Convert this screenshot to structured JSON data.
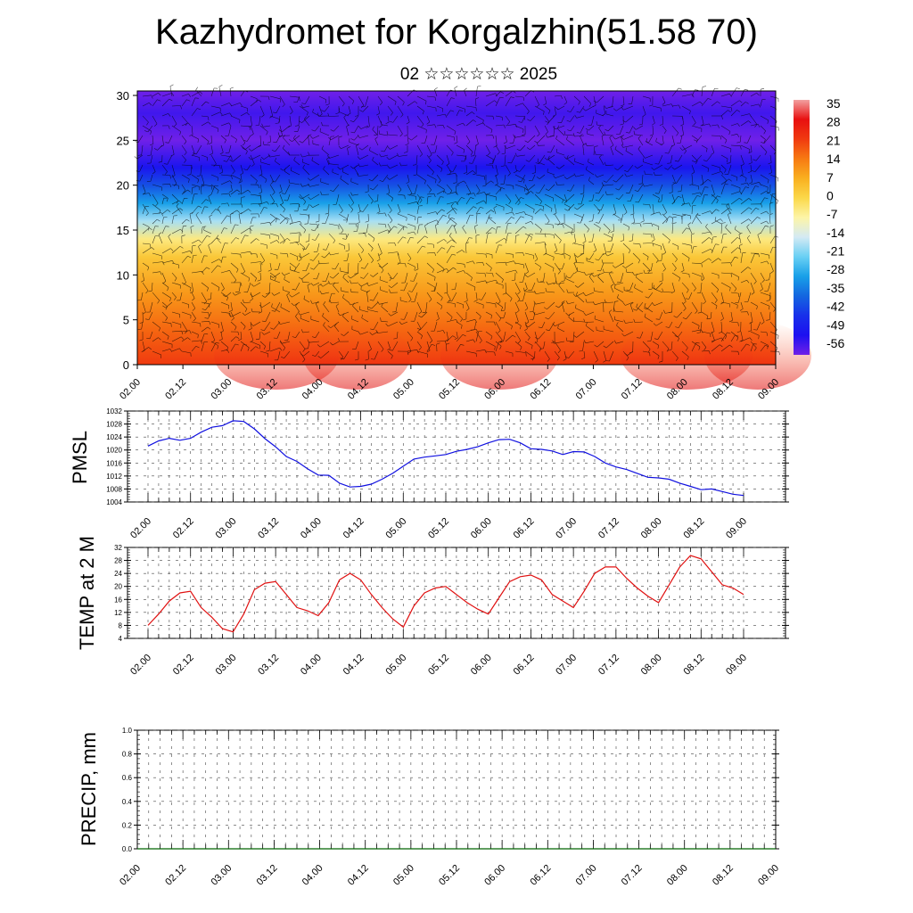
{
  "title": "Kazhydromet for Korgalzhin(51.58 70)",
  "subtitle": "02 ☆☆☆☆☆☆ 2025",
  "time_labels": [
    "02.00",
    "02.12",
    "03.00",
    "03.12",
    "04.00",
    "04.12",
    "05.00",
    "05.12",
    "06.00",
    "06.12",
    "07.00",
    "07.12",
    "08.00",
    "08.12",
    "09.00"
  ],
  "colors": {
    "pmsl_line": "#1010e0",
    "temp_line": "#e01010",
    "precip_line": "#006400"
  },
  "chart_data": [
    {
      "type": "heatmap",
      "name": "height-time temperature cross section with wind barbs",
      "x": [
        "02.00",
        "02.12",
        "03.00",
        "03.12",
        "04.00",
        "04.12",
        "05.00",
        "05.12",
        "06.00",
        "06.12",
        "07.00",
        "07.12",
        "08.00",
        "08.12",
        "09.00"
      ],
      "ylim": [
        0,
        30.5
      ],
      "yticks": [
        0,
        5,
        10,
        15,
        20,
        25,
        30
      ],
      "colorbar_labels": [
        "35",
        "28",
        "21",
        "14",
        "7",
        "0",
        "-7",
        "-14",
        "-21",
        "-28",
        "-35",
        "-42",
        "-49",
        "-56"
      ],
      "colorscale": [
        {
          "value": 35,
          "color": "#f2a0a0"
        },
        {
          "value": 28,
          "color": "#e81010"
        },
        {
          "value": 21,
          "color": "#f03a10"
        },
        {
          "value": 14,
          "color": "#f77a12"
        },
        {
          "value": 7,
          "color": "#f9b020"
        },
        {
          "value": 0,
          "color": "#fbd84a"
        },
        {
          "value": -7,
          "color": "#fdf5a8"
        },
        {
          "value": -14,
          "color": "#d4eaf4"
        },
        {
          "value": -21,
          "color": "#6ad0f4"
        },
        {
          "value": -28,
          "color": "#18a0e8"
        },
        {
          "value": -35,
          "color": "#1466e0"
        },
        {
          "value": -42,
          "color": "#1830ea"
        },
        {
          "value": -49,
          "color": "#1c10f0"
        },
        {
          "value": -56,
          "color": "#7020e8"
        }
      ],
      "profile": [
        {
          "height": 0,
          "temperature": 21
        },
        {
          "height": 4,
          "temperature": 16
        },
        {
          "height": 8,
          "temperature": 10
        },
        {
          "height": 12,
          "temperature": 3
        },
        {
          "height": 14,
          "temperature": -4
        },
        {
          "height": 16,
          "temperature": -17
        },
        {
          "height": 18,
          "temperature": -28
        },
        {
          "height": 20,
          "temperature": -38
        },
        {
          "height": 22,
          "temperature": -48
        },
        {
          "height": 25,
          "temperature": -56
        },
        {
          "height": 28,
          "temperature": -52
        },
        {
          "height": 30.5,
          "temperature": -56
        }
      ],
      "grid": false
    },
    {
      "type": "line",
      "ylabel": "PMSL",
      "ylim": [
        1004,
        1032
      ],
      "yticks": [
        1004,
        1008,
        1012,
        1016,
        1020,
        1024,
        1028,
        1032
      ],
      "x_labels": [
        "02.00",
        "02.12",
        "03.00",
        "03.12",
        "04.00",
        "04.12",
        "05.00",
        "05.12",
        "06.00",
        "06.12",
        "07.00",
        "07.12",
        "08.00",
        "08.12",
        "09.00"
      ],
      "values": [
        1021.2,
        1022.8,
        1023.6,
        1023.0,
        1023.6,
        1025.5,
        1027.0,
        1027.5,
        1029.0,
        1028.8,
        1026.5,
        1023.5,
        1021.0,
        1018.0,
        1016.5,
        1014.2,
        1012.3,
        1012.2,
        1009.8,
        1008.6,
        1008.8,
        1009.5,
        1011.0,
        1012.8,
        1015.0,
        1017.2,
        1017.8,
        1018.2,
        1018.6,
        1019.6,
        1020.2,
        1021.0,
        1022.2,
        1023.2,
        1023.3,
        1022.2,
        1020.4,
        1020.2,
        1019.7,
        1018.6,
        1019.5,
        1019.4,
        1018.0,
        1016.0,
        1014.8,
        1014.0,
        1012.8,
        1011.6,
        1011.4,
        1011.0,
        1009.8,
        1008.8,
        1007.8,
        1008.0,
        1007.2,
        1006.4,
        1006.0
      ],
      "grid": true
    },
    {
      "type": "line",
      "ylabel": "TEMP at 2 M",
      "ylim": [
        4,
        32
      ],
      "yticks": [
        4,
        8,
        12,
        16,
        20,
        24,
        28,
        32
      ],
      "x_labels": [
        "02.00",
        "02.12",
        "03.00",
        "03.12",
        "04.00",
        "04.12",
        "05.00",
        "05.12",
        "06.00",
        "06.12",
        "07.00",
        "07.12",
        "08.00",
        "08.12",
        "09.00"
      ],
      "values": [
        8,
        11.5,
        15.5,
        18,
        18.5,
        13.5,
        10.5,
        7,
        6,
        11.5,
        19,
        21,
        21.5,
        17.5,
        13.5,
        12.5,
        11,
        15,
        22,
        24,
        22,
        17.5,
        13.5,
        10,
        7.5,
        14,
        18,
        19.5,
        20,
        17.5,
        15,
        13,
        11.5,
        16.5,
        21.5,
        23,
        23.5,
        22,
        17.5,
        15.5,
        13.5,
        18.5,
        24,
        26,
        26,
        22.5,
        19.5,
        17,
        15,
        20.5,
        26,
        29.5,
        28.5,
        24.5,
        20.5,
        19.5,
        17.5
      ],
      "grid": true
    },
    {
      "type": "line",
      "ylabel": "PRECIP, mm",
      "ylim": [
        0,
        1.0
      ],
      "yticks": [
        "0.0",
        "0.2",
        "0.4",
        "0.6",
        "0.8",
        "1.0"
      ],
      "x_labels": [
        "02.00",
        "02.12",
        "03.00",
        "03.12",
        "04.00",
        "04.12",
        "05.00",
        "05.12",
        "06.00",
        "06.12",
        "07.00",
        "07.12",
        "08.00",
        "08.12",
        "09.00"
      ],
      "values": [
        0,
        0,
        0,
        0,
        0,
        0,
        0,
        0,
        0,
        0,
        0,
        0,
        0,
        0,
        0
      ],
      "grid": true
    }
  ]
}
